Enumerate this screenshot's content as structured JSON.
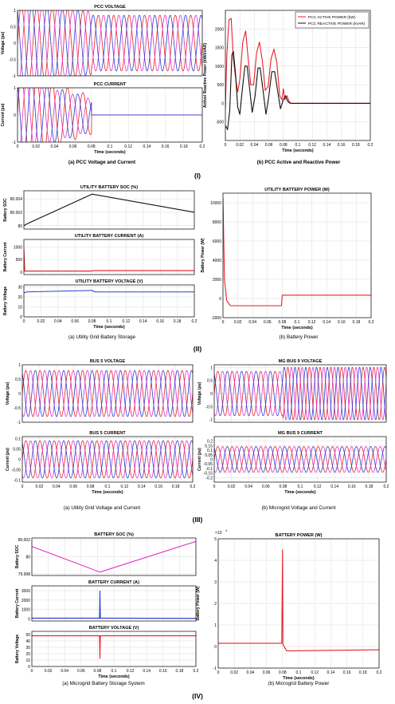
{
  "chart_data": [
    {
      "id": "pcc_voltage",
      "type": "line",
      "title": "PCC  VOLTAGE",
      "ylabel": "Voltage (pu)",
      "xlabel": "",
      "xlim": [
        0,
        0.2
      ],
      "ylim": [
        -1,
        1
      ],
      "yticks": [
        -1,
        -0.5,
        0,
        0.5,
        1
      ],
      "xticks": [],
      "grid": true,
      "series": [
        {
          "color": "#e8202a",
          "signal": {
            "kind": "sine",
            "amplitude": 0.85,
            "frequency_hz": 60,
            "phase_deg": 0,
            "transient_amplitude": 1.15,
            "transient_until": 0.08
          }
        },
        {
          "color": "#e233c8",
          "signal": {
            "kind": "sine",
            "amplitude": 0.85,
            "frequency_hz": 60,
            "phase_deg": -120,
            "transient_amplitude": 1.15,
            "transient_until": 0.08
          }
        },
        {
          "color": "#2b3bd6",
          "signal": {
            "kind": "sine",
            "amplitude": 0.85,
            "frequency_hz": 60,
            "phase_deg": 120,
            "transient_amplitude": 1.15,
            "transient_until": 0.08
          }
        }
      ]
    },
    {
      "id": "pcc_current",
      "type": "line",
      "title": "PCC  CURRENT",
      "ylabel": "Current (pu)",
      "xlabel": "Time (seconds)",
      "xlim": [
        0,
        0.2
      ],
      "ylim": [
        -1,
        1
      ],
      "yticks": [
        -1,
        0,
        1
      ],
      "xticks": [
        0,
        0.02,
        0.04,
        0.06,
        0.08,
        0.1,
        0.12,
        0.14,
        0.16,
        0.18,
        0.2
      ],
      "grid": true,
      "series": [
        {
          "color": "#e8202a",
          "signal": {
            "kind": "decaying_sine",
            "amplitude": 1.6,
            "frequency_hz": 60,
            "phase_deg": 0,
            "stop": 0.08
          }
        },
        {
          "color": "#e233c8",
          "signal": {
            "kind": "decaying_sine",
            "amplitude": 1.3,
            "frequency_hz": 60,
            "phase_deg": -120,
            "stop": 0.08
          }
        },
        {
          "color": "#2b3bd6",
          "signal": {
            "kind": "decaying_sine",
            "amplitude": 1.4,
            "frequency_hz": 60,
            "phase_deg": 120,
            "stop": 0.08
          }
        }
      ]
    },
    {
      "id": "pcc_power",
      "type": "line",
      "title": "",
      "ylabel": "Active/ Reactive Power (kW/kVAR)",
      "xlabel": "Time (seconds)",
      "xlim": [
        0,
        0.2
      ],
      "ylim": [
        -1000,
        2500
      ],
      "yticks": [
        -500,
        0,
        500,
        1000,
        1500,
        2000
      ],
      "xticks": [
        0,
        0.02,
        0.04,
        0.06,
        0.08,
        0.1,
        0.12,
        0.14,
        0.16,
        0.18,
        0.2
      ],
      "grid": true,
      "legend": "top-right",
      "series": [
        {
          "name": "PCC ACTIVE  POWER  (kW)",
          "color": "#e8202a",
          "points": [
            [
              0,
              -150
            ],
            [
              0.002,
              1300
            ],
            [
              0.005,
              2250
            ],
            [
              0.008,
              2280
            ],
            [
              0.011,
              1200
            ],
            [
              0.014,
              700
            ],
            [
              0.017,
              300
            ],
            [
              0.02,
              650
            ],
            [
              0.024,
              1650
            ],
            [
              0.028,
              1950
            ],
            [
              0.031,
              1300
            ],
            [
              0.035,
              500
            ],
            [
              0.039,
              500
            ],
            [
              0.043,
              1350
            ],
            [
              0.047,
              1650
            ],
            [
              0.051,
              1150
            ],
            [
              0.055,
              350
            ],
            [
              0.059,
              450
            ],
            [
              0.063,
              1200
            ],
            [
              0.067,
              1450
            ],
            [
              0.071,
              1100
            ],
            [
              0.075,
              200
            ],
            [
              0.078,
              100
            ],
            [
              0.08,
              400
            ],
            [
              0.082,
              100
            ],
            [
              0.085,
              200
            ],
            [
              0.088,
              50
            ],
            [
              0.09,
              0
            ],
            [
              0.2,
              0
            ]
          ]
        },
        {
          "name": "PCC REACTIVE  POWER  (kVAR)",
          "color": "#111111",
          "points": [
            [
              0,
              -600
            ],
            [
              0.003,
              -700
            ],
            [
              0.006,
              -200
            ],
            [
              0.009,
              1300
            ],
            [
              0.011,
              1400
            ],
            [
              0.014,
              800
            ],
            [
              0.017,
              -100
            ],
            [
              0.02,
              -300
            ],
            [
              0.023,
              300
            ],
            [
              0.027,
              1000
            ],
            [
              0.03,
              1000
            ],
            [
              0.034,
              300
            ],
            [
              0.037,
              -250
            ],
            [
              0.041,
              200
            ],
            [
              0.045,
              950
            ],
            [
              0.048,
              950
            ],
            [
              0.052,
              350
            ],
            [
              0.056,
              -300
            ],
            [
              0.06,
              200
            ],
            [
              0.064,
              850
            ],
            [
              0.068,
              850
            ],
            [
              0.072,
              350
            ],
            [
              0.076,
              -150
            ],
            [
              0.08,
              100
            ],
            [
              0.083,
              200
            ],
            [
              0.086,
              50
            ],
            [
              0.09,
              0
            ],
            [
              0.2,
              0
            ]
          ]
        }
      ]
    },
    {
      "id": "util_soc",
      "type": "line",
      "title": "UTILITY   BATTERY SOC (%)",
      "ylabel": "Battery SOC",
      "xlabel": "",
      "xlim": [
        0,
        0.2
      ],
      "ylim": [
        79.9995,
        80.0052
      ],
      "yticks_labeled": [
        80.004,
        80.002,
        80
      ],
      "xticks": [],
      "grid": true,
      "series": [
        {
          "color": "#111111",
          "points": [
            [
              0,
              80
            ],
            [
              0.004,
              80.0003
            ],
            [
              0.08,
              80.0047
            ],
            [
              0.2,
              80.002
            ]
          ]
        }
      ]
    },
    {
      "id": "util_current",
      "type": "line",
      "title": "UTILITY BATTERY CURRENT (A)",
      "ylabel": "Battery Current",
      "xlabel": "",
      "xlim": [
        0,
        0.2
      ],
      "ylim": [
        -100,
        1300
      ],
      "yticks": [
        0,
        500,
        1000
      ],
      "xticks": [],
      "grid": true,
      "series": [
        {
          "color": "#e8202a",
          "points": [
            [
              0,
              900
            ],
            [
              0.001,
              40
            ],
            [
              0.08,
              40
            ],
            [
              0.081,
              60
            ],
            [
              0.2,
              60
            ]
          ]
        }
      ]
    },
    {
      "id": "util_voltage",
      "type": "line",
      "title": "UTILITY BATTERY VOLTAGE (V)",
      "ylabel": "Battery Voltage",
      "xlabel": "Time (seconds)",
      "xlim": [
        0,
        0.2
      ],
      "ylim": [
        0,
        32
      ],
      "yticks": [
        0,
        10,
        20,
        30
      ],
      "xticks": [
        0,
        0.02,
        0.04,
        0.06,
        0.08,
        0.1,
        0.12,
        0.14,
        0.16,
        0.18,
        0.2
      ],
      "grid": true,
      "series": [
        {
          "color": "#2b3bd6",
          "points": [
            [
              0,
              24
            ],
            [
              0.003,
              25
            ],
            [
              0.08,
              26.5
            ],
            [
              0.083,
              25
            ],
            [
              0.2,
              25
            ]
          ]
        }
      ]
    },
    {
      "id": "util_power",
      "type": "line",
      "title": "UTILITY  BATTERY  POWER  (W)",
      "ylabel": "Battery Power (W)",
      "xlabel": "Time (seconds)",
      "xlim": [
        0,
        0.2
      ],
      "ylim": [
        -2000,
        11000
      ],
      "yticks": [
        -2000,
        0,
        2000,
        4000,
        6000,
        8000,
        10000
      ],
      "xticks": [
        0,
        0.02,
        0.04,
        0.06,
        0.08,
        0.1,
        0.12,
        0.14,
        0.16,
        0.18,
        0.2
      ],
      "grid": true,
      "series": [
        {
          "color": "#e8202a",
          "points": [
            [
              0,
              10500
            ],
            [
              0.002,
              2000
            ],
            [
              0.005,
              -200
            ],
            [
              0.01,
              -750
            ],
            [
              0.079,
              -750
            ],
            [
              0.08,
              350
            ],
            [
              0.2,
              350
            ]
          ]
        }
      ]
    },
    {
      "id": "bus5_voltage",
      "type": "line",
      "title": "BUS 5 VOLTAGE",
      "ylabel": "Voltage (pu)",
      "xlabel": "",
      "xlim": [
        0,
        0.2
      ],
      "ylim": [
        -1,
        1
      ],
      "yticks": [
        -1,
        -0.5,
        0,
        0.5,
        1
      ],
      "xticks": [],
      "grid": true,
      "series": [
        {
          "color": "#e8202a",
          "signal": {
            "kind": "sine",
            "amplitude": 0.8,
            "frequency_hz": 60,
            "phase_deg": 0
          }
        },
        {
          "color": "#e233c8",
          "signal": {
            "kind": "sine",
            "amplitude": 0.8,
            "frequency_hz": 60,
            "phase_deg": -120
          }
        },
        {
          "color": "#2b3bd6",
          "signal": {
            "kind": "sine",
            "amplitude": 0.8,
            "frequency_hz": 60,
            "phase_deg": 120
          }
        }
      ]
    },
    {
      "id": "bus5_current",
      "type": "line",
      "title": "BUS 5 CURRENT",
      "ylabel": "Current (pu)",
      "xlabel": "Time (seconds)",
      "xlim": [
        0,
        0.2
      ],
      "ylim": [
        -0.11,
        0.11
      ],
      "yticks": [
        -0.1,
        -0.05,
        0,
        0.05,
        0.1
      ],
      "xticks": [
        0,
        0.02,
        0.04,
        0.06,
        0.08,
        0.1,
        0.12,
        0.14,
        0.16,
        0.18,
        0.2
      ],
      "grid": true,
      "series": [
        {
          "color": "#e8202a",
          "signal": {
            "kind": "sine",
            "amplitude": 0.09,
            "frequency_hz": 60,
            "phase_deg": 0
          }
        },
        {
          "color": "#e233c8",
          "signal": {
            "kind": "sine",
            "amplitude": 0.09,
            "frequency_hz": 60,
            "phase_deg": -120
          }
        },
        {
          "color": "#2b3bd6",
          "signal": {
            "kind": "sine",
            "amplitude": 0.09,
            "frequency_hz": 60,
            "phase_deg": 120
          }
        }
      ]
    },
    {
      "id": "mg9_voltage",
      "type": "line",
      "title": "MG BUS 9 VOLTAGE",
      "ylabel": "Voltage (pu)",
      "xlabel": "",
      "xlim": [
        0,
        0.2
      ],
      "ylim": [
        -1.1,
        1.1
      ],
      "yticks": [
        -1,
        -0.5,
        0,
        0.5,
        1
      ],
      "xticks": [],
      "grid": true,
      "series": [
        {
          "color": "#e8202a",
          "signal": {
            "kind": "sine",
            "amplitude": 0.85,
            "frequency_hz": 60,
            "phase_deg": 0,
            "after_amplitude": 1.0,
            "after_frequency_hz": 80,
            "after_start": 0.08
          }
        },
        {
          "color": "#e233c8",
          "signal": {
            "kind": "sine",
            "amplitude": 0.85,
            "frequency_hz": 60,
            "phase_deg": -120,
            "after_amplitude": 1.0,
            "after_frequency_hz": 80,
            "after_start": 0.08
          }
        },
        {
          "color": "#2b3bd6",
          "signal": {
            "kind": "sine",
            "amplitude": 0.85,
            "frequency_hz": 60,
            "phase_deg": 120,
            "after_amplitude": 1.0,
            "after_frequency_hz": 80,
            "after_start": 0.08
          }
        }
      ]
    },
    {
      "id": "mg9_current",
      "type": "line",
      "title": "MG BUS 9 CURRENT",
      "ylabel": "Current (pu)",
      "xlabel": "Time (seconds)",
      "xlim": [
        0,
        0.2
      ],
      "ylim": [
        -0.25,
        0.25
      ],
      "yticks": [
        -0.2,
        -0.15,
        -0.1,
        -0.05,
        0,
        0.05,
        0.1,
        0.15,
        0.2
      ],
      "xticks": [
        0,
        0.02,
        0.04,
        0.06,
        0.08,
        0.1,
        0.12,
        0.14,
        0.16,
        0.18,
        0.2
      ],
      "grid": true,
      "series": [
        {
          "color": "#e8202a",
          "signal": {
            "kind": "sine",
            "amplitude": 0.14,
            "frequency_hz": 60,
            "phase_deg": 0
          }
        },
        {
          "color": "#e233c8",
          "signal": {
            "kind": "sine",
            "amplitude": 0.14,
            "frequency_hz": 60,
            "phase_deg": -120
          }
        },
        {
          "color": "#2b3bd6",
          "signal": {
            "kind": "sine",
            "amplitude": 0.14,
            "frequency_hz": 60,
            "phase_deg": 120
          }
        }
      ]
    },
    {
      "id": "mg_soc",
      "type": "line",
      "title": "BATTERY SOC (%)",
      "ylabel": "Battery SOC",
      "xlabel": "",
      "xlim": [
        0,
        0.2
      ],
      "ylim": [
        79.9978,
        80.0022
      ],
      "yticks_labeled": [
        80.002,
        80,
        79.998
      ],
      "xticks": [],
      "grid": true,
      "series": [
        {
          "color": "#e233c8",
          "points": [
            [
              0,
              80.0012
            ],
            [
              0.083,
              79.9982
            ],
            [
              0.2,
              80.0018
            ]
          ]
        }
      ]
    },
    {
      "id": "mg_current",
      "type": "line",
      "title": "BATTERY CURRENT (A)",
      "ylabel": "Battery Current",
      "xlabel": "",
      "xlim": [
        0,
        0.2
      ],
      "ylim": [
        -200,
        3500
      ],
      "yticks": [
        0,
        1000,
        2000,
        3000
      ],
      "xticks": [],
      "grid": true,
      "series": [
        {
          "color": "#2b3bd6",
          "points": [
            [
              0,
              100
            ],
            [
              0.0825,
              100
            ],
            [
              0.083,
              3000
            ],
            [
              0.0835,
              100
            ],
            [
              0.2,
              80
            ]
          ]
        }
      ]
    },
    {
      "id": "mg_voltage",
      "type": "line",
      "title": "BATTERY VOLTAGE (V)",
      "ylabel": "Battery Voltage",
      "xlabel": "Time (seconds)",
      "xlim": [
        0,
        0.2
      ],
      "ylim": [
        0,
        55
      ],
      "yticks": [
        0,
        10,
        20,
        30,
        40,
        50
      ],
      "xticks": [
        0,
        0.02,
        0.04,
        0.06,
        0.08,
        0.1,
        0.12,
        0.14,
        0.16,
        0.18,
        0.2
      ],
      "grid": true,
      "series": [
        {
          "color": "#e8202a",
          "points": [
            [
              0,
              48
            ],
            [
              0.0825,
              48
            ],
            [
              0.083,
              12
            ],
            [
              0.0835,
              48
            ],
            [
              0.2,
              48
            ]
          ]
        }
      ]
    },
    {
      "id": "mg_power",
      "type": "line",
      "title": "BATTERY POWER (W)",
      "ylabel": "Battery Power (W)",
      "xlabel": "Time (seconds)",
      "exponent_label": "×10",
      "exponent_power": "4",
      "xlim": [
        0,
        0.2
      ],
      "ylim": [
        -1,
        5
      ],
      "yticks": [
        -1,
        0,
        1,
        2,
        3,
        4,
        5
      ],
      "xticks": [
        0,
        0.02,
        0.04,
        0.06,
        0.08,
        0.1,
        0.12,
        0.14,
        0.16,
        0.18,
        0.2
      ],
      "grid": true,
      "series": [
        {
          "color": "#e8202a",
          "points": [
            [
              0,
              0.15
            ],
            [
              0.079,
              0.15
            ],
            [
              0.08,
              4.5
            ],
            [
              0.0805,
              0.1
            ],
            [
              0.085,
              -0.2
            ],
            [
              0.2,
              -0.15
            ]
          ]
        }
      ]
    }
  ],
  "captions": {
    "pcc_left": "(a) PCC Voltage and Current",
    "pcc_right": "(b)   PCC Active and Reactive Power",
    "section_1": "(I)",
    "util_left": "(a) Utility Grid Battery Storage",
    "util_right": "(b) Battery Power",
    "section_2": "(II)",
    "bus_left": "(a) Utility Grid  Voltage and Current",
    "bus_right": "(b) Microgrid Voltage and Current",
    "section_3": "(III)",
    "mg_left": "(a)     Microgrid Battery Storage  System",
    "mg_right": "(b)   Microgrid Battery Power",
    "section_4": "(IV)"
  }
}
